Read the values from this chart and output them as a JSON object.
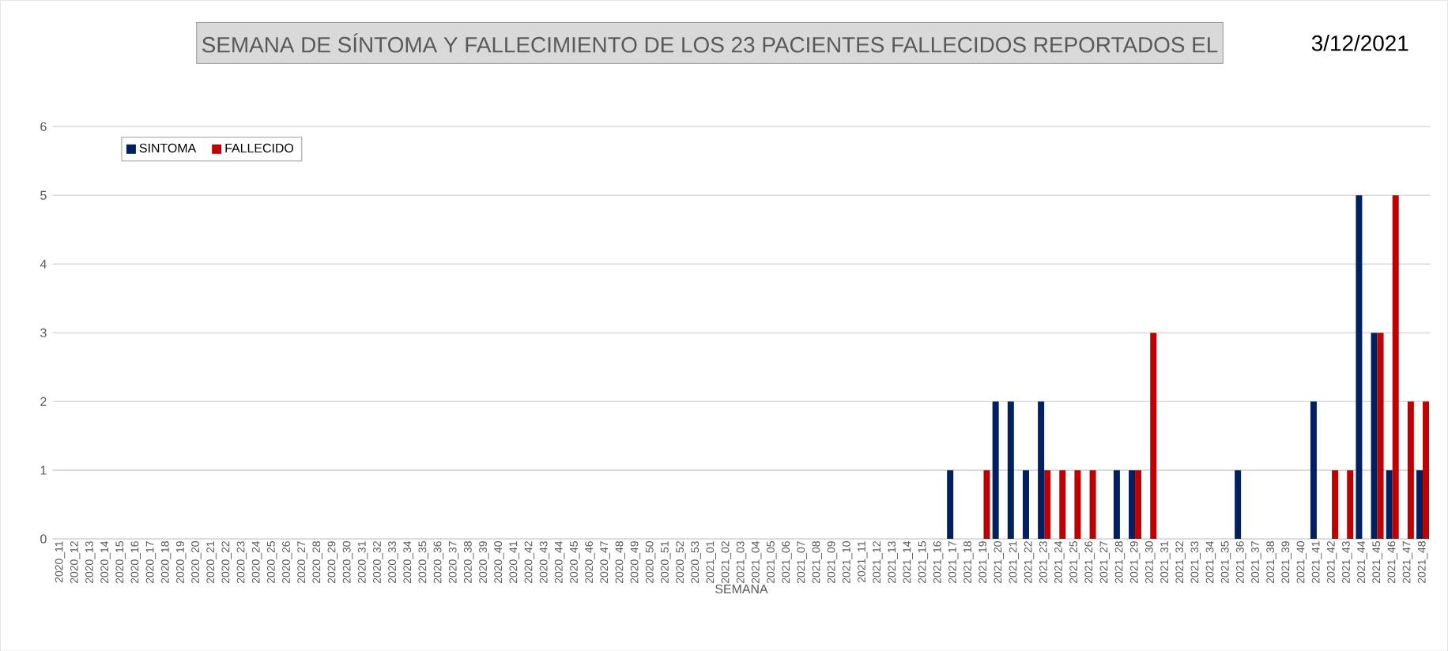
{
  "chart_data": {
    "type": "bar",
    "title": "SEMANA DE SÍNTOMA Y FALLECIMIENTO DE LOS  23   PACIENTES FALLECIDOS REPORTADOS EL",
    "subtitle": "3/12/2021",
    "xlabel": "SEMANA",
    "categories": [
      "2020_11",
      "2020_12",
      "2020_13",
      "2020_14",
      "2020_15",
      "2020_16",
      "2020_17",
      "2020_18",
      "2020_19",
      "2020_20",
      "2020_21",
      "2020_22",
      "2020_23",
      "2020_24",
      "2020_25",
      "2020_26",
      "2020_27",
      "2020_28",
      "2020_29",
      "2020_30",
      "2020_31",
      "2020_32",
      "2020_33",
      "2020_34",
      "2020_35",
      "2020_36",
      "2020_37",
      "2020_38",
      "2020_39",
      "2020_40",
      "2020_41",
      "2020_42",
      "2020_43",
      "2020_44",
      "2020_45",
      "2020_46",
      "2020_47",
      "2020_48",
      "2020_49",
      "2020_50",
      "2020_51",
      "2020_52",
      "2020_53",
      "2021_01",
      "2021_02",
      "2021_03",
      "2021_04",
      "2021_05",
      "2021_06",
      "2021_07",
      "2021_08",
      "2021_09",
      "2021_10",
      "2021_11",
      "2021_12",
      "2021_13",
      "2021_14",
      "2021_15",
      "2021_16",
      "2021_17",
      "2021_18",
      "2021_19",
      "2021_20",
      "2021_21",
      "2021_22",
      "2021_23",
      "2021_24",
      "2021_25",
      "2021_26",
      "2021_27",
      "2021_28",
      "2021_29",
      "2021_30",
      "2021_31",
      "2021_32",
      "2021_33",
      "2021_34",
      "2021_35",
      "2021_36",
      "2021_37",
      "2021_38",
      "2021_39",
      "2021_40",
      "2021_41",
      "2021_42",
      "2021_43",
      "2021_44",
      "2021_45",
      "2021_46",
      "2021_47",
      "2021_48"
    ],
    "series": [
      {
        "name": "SINTOMA",
        "color": "#002060",
        "values": [
          0,
          0,
          0,
          0,
          0,
          0,
          0,
          0,
          0,
          0,
          0,
          0,
          0,
          0,
          0,
          0,
          0,
          0,
          0,
          0,
          0,
          0,
          0,
          0,
          0,
          0,
          0,
          0,
          0,
          0,
          0,
          0,
          0,
          0,
          0,
          0,
          0,
          0,
          0,
          0,
          0,
          0,
          0,
          0,
          0,
          0,
          0,
          0,
          0,
          0,
          0,
          0,
          0,
          0,
          0,
          0,
          0,
          0,
          0,
          1,
          0,
          0,
          2,
          2,
          1,
          2,
          0,
          0,
          0,
          0,
          1,
          1,
          0,
          0,
          0,
          0,
          0,
          0,
          1,
          0,
          0,
          0,
          0,
          2,
          0,
          0,
          5,
          3,
          1,
          0,
          1
        ]
      },
      {
        "name": "FALLECIDO",
        "color": "#c00000",
        "values": [
          0,
          0,
          0,
          0,
          0,
          0,
          0,
          0,
          0,
          0,
          0,
          0,
          0,
          0,
          0,
          0,
          0,
          0,
          0,
          0,
          0,
          0,
          0,
          0,
          0,
          0,
          0,
          0,
          0,
          0,
          0,
          0,
          0,
          0,
          0,
          0,
          0,
          0,
          0,
          0,
          0,
          0,
          0,
          0,
          0,
          0,
          0,
          0,
          0,
          0,
          0,
          0,
          0,
          0,
          0,
          0,
          0,
          0,
          0,
          0,
          0,
          1,
          0,
          0,
          0,
          1,
          1,
          1,
          1,
          0,
          0,
          1,
          3,
          0,
          0,
          0,
          0,
          0,
          0,
          0,
          0,
          0,
          0,
          0,
          1,
          1,
          0,
          3,
          5,
          2,
          2
        ]
      }
    ],
    "ylim": [
      0,
      6
    ],
    "yticks": [
      0,
      1,
      2,
      3,
      4,
      5,
      6
    ],
    "grid": "y",
    "legend": "top left"
  }
}
